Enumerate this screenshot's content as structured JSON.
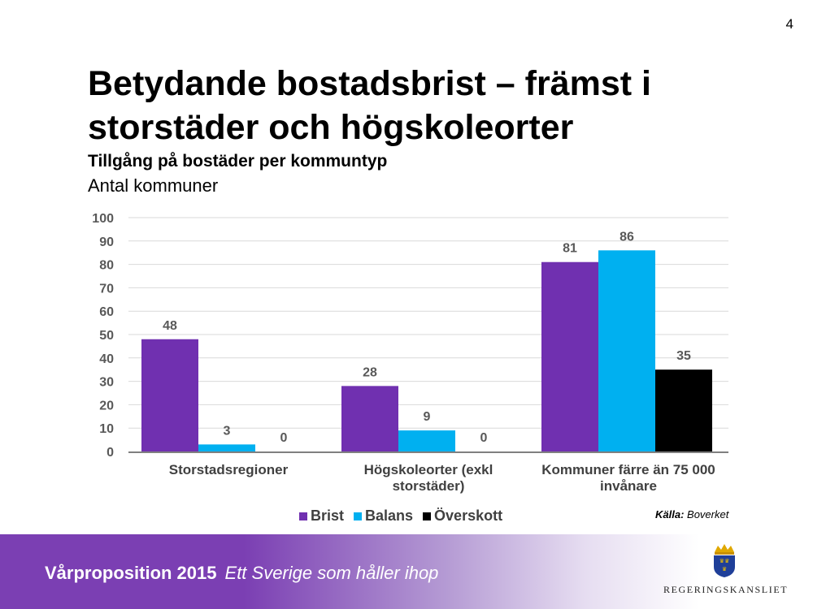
{
  "page": {
    "number": "4",
    "title": "Betydande bostadsbrist – främst i storstäder och högskoleorter",
    "subtitle": "Tillgång på bostäder per kommuntyp",
    "unit": "Antal kommuner",
    "source_label": "Källa:",
    "source_value": "Boverket"
  },
  "footer": {
    "title": "Vårproposition 2015",
    "tagline": "Ett Sverige som håller ihop",
    "logo_text": "REGERINGSKANSLIET"
  },
  "chart_data": {
    "type": "bar",
    "categories": [
      [
        "Storstadsregioner"
      ],
      [
        "Högskoleorter (exkl",
        "storstäder)"
      ],
      [
        "Kommuner färre än 75 000",
        "invånare"
      ]
    ],
    "series": [
      {
        "name": "Brist",
        "color": "#7030b0",
        "values": [
          48,
          28,
          81
        ]
      },
      {
        "name": "Balans",
        "color": "#00b0f0",
        "values": [
          3,
          9,
          86
        ]
      },
      {
        "name": "Överskott",
        "color": "#000000",
        "values": [
          0,
          0,
          35
        ]
      }
    ],
    "ylim": [
      0,
      100
    ],
    "yticks": [
      0,
      10,
      20,
      30,
      40,
      50,
      60,
      70,
      80,
      90,
      100
    ],
    "grid": true,
    "legend": "bottom"
  }
}
